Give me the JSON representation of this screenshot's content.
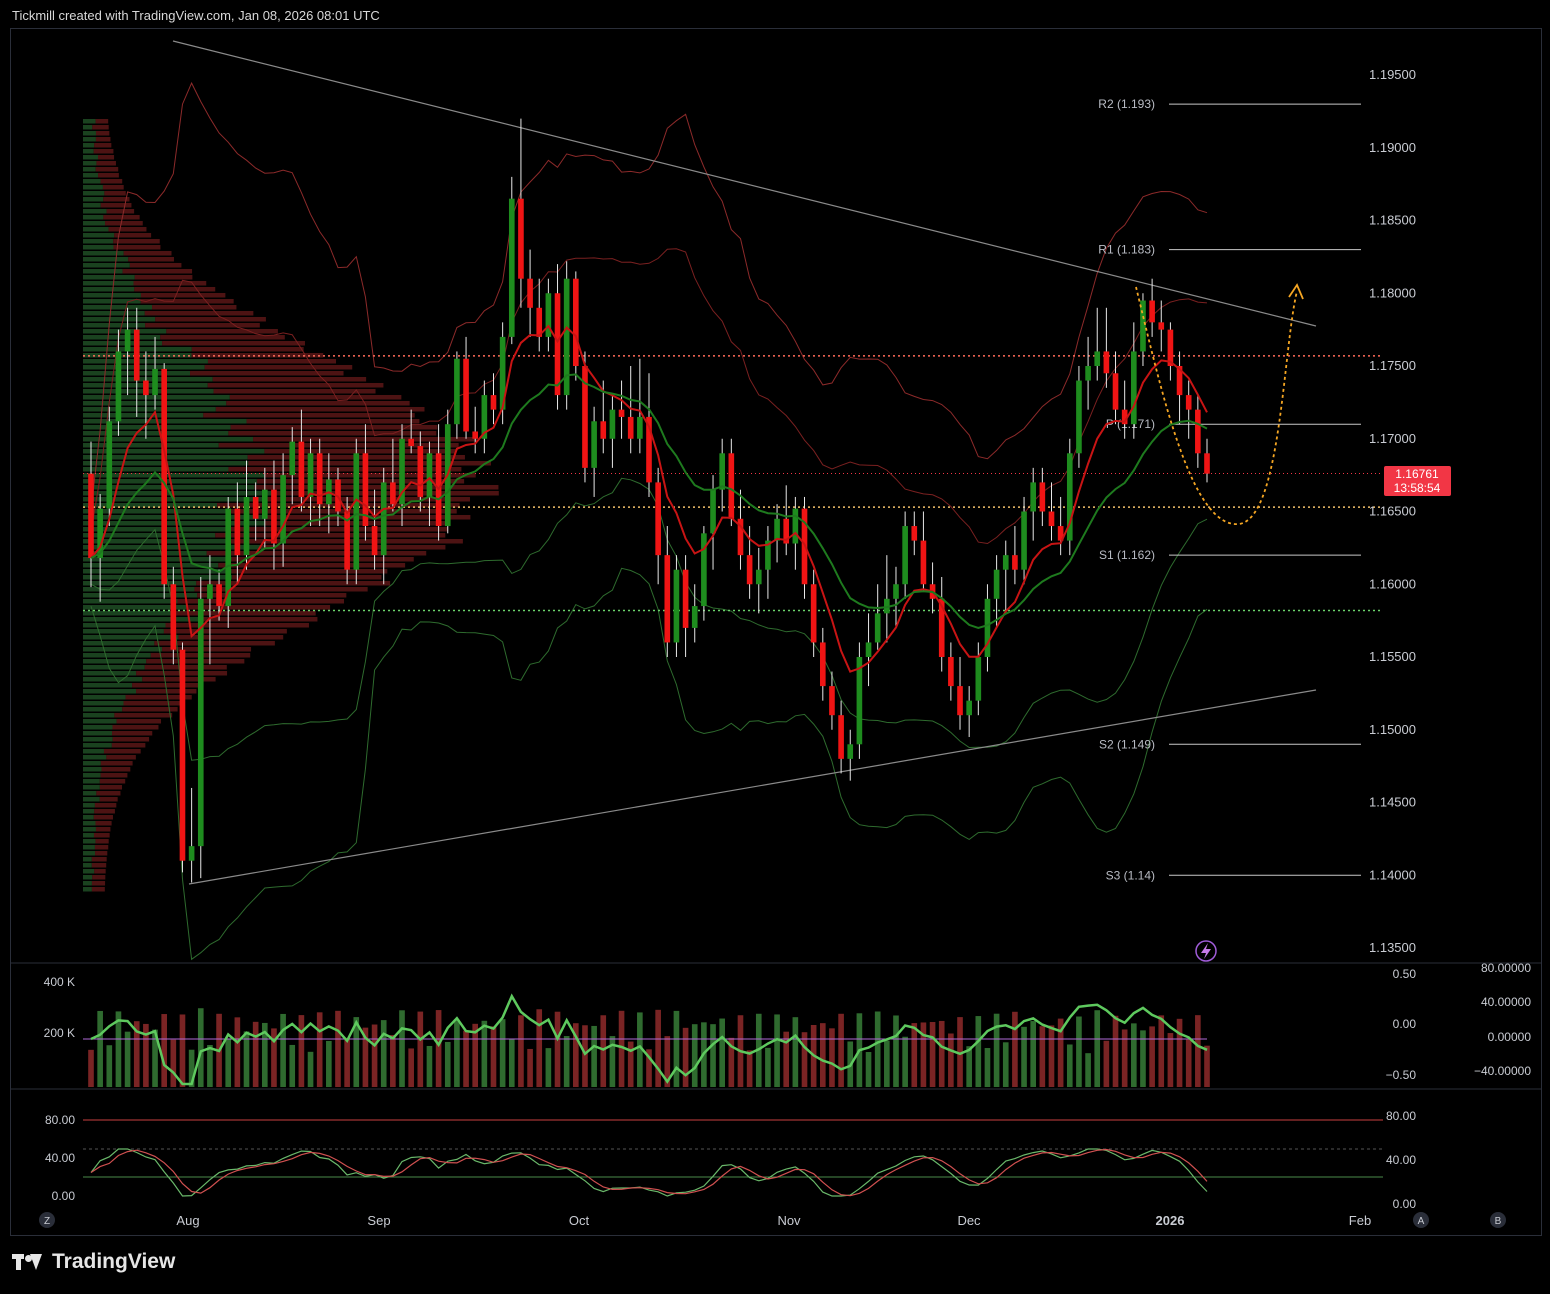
{
  "header": {
    "text": "Tickmill created with TradingView.com, Jan 08, 2026 08:01 UTC"
  },
  "footer": {
    "brand": "TradingView"
  },
  "price_axis": {
    "ticks": [
      "1.19500",
      "1.19000",
      "1.18500",
      "1.18000",
      "1.17500",
      "1.17000",
      "1.16500",
      "1.16000",
      "1.15500",
      "1.15000",
      "1.14500",
      "1.14000",
      "1.13500"
    ]
  },
  "last_price": {
    "value": "1.16761",
    "countdown": "13:58:54",
    "color": "#f23645"
  },
  "pivots": [
    {
      "label": "R2 (1.193)",
      "value": 1.193
    },
    {
      "label": "R1 (1.183)",
      "value": 1.183
    },
    {
      "label": "P (1.171)",
      "value": 1.171
    },
    {
      "label": "S1 (1.162)",
      "value": 1.162
    },
    {
      "label": "S2 (1.149)",
      "value": 1.149
    },
    {
      "label": "S3 (1.14)",
      "value": 1.14
    }
  ],
  "time_axis": {
    "labels": [
      "Aug",
      "Sep",
      "Oct",
      "Nov",
      "Dec",
      "2026",
      "Feb"
    ]
  },
  "volume_pane": {
    "left_ticks": [
      "400 K",
      "200 K"
    ],
    "mid_ticks": [
      "0.50",
      "0.00",
      "−0.50"
    ],
    "right_ticks": [
      "80.00000",
      "40.00000",
      "0.00000",
      "−40.00000"
    ]
  },
  "stoch_pane": {
    "left_ticks": [
      "80.00",
      "40.00",
      "0.00"
    ],
    "right_ticks": [
      "80.00",
      "40.00",
      "0.00"
    ]
  },
  "corner_buttons": {
    "z": "Z",
    "a": "A",
    "b": "B"
  },
  "colors": {
    "up": "#1e8c1e",
    "down": "#f01414",
    "trend": "#8a8a8a",
    "forecast": "#f5a623",
    "poc": "#ff6b5a",
    "val": "#f5c26b",
    "vah": "#6bd46b"
  },
  "chart_data": {
    "type": "candlestick",
    "symbol_price_range": [
      1.13,
      1.2
    ],
    "candles": [
      [
        1.1676,
        1.1698,
        1.1598,
        1.1618
      ],
      [
        1.1618,
        1.1662,
        1.1588,
        1.1652
      ],
      [
        1.1652,
        1.1722,
        1.164,
        1.1712
      ],
      [
        1.1712,
        1.1775,
        1.1702,
        1.176
      ],
      [
        1.176,
        1.179,
        1.173,
        1.1775
      ],
      [
        1.1775,
        1.179,
        1.1715,
        1.174
      ],
      [
        1.174,
        1.176,
        1.17,
        1.173
      ],
      [
        1.173,
        1.177,
        1.172,
        1.1748
      ],
      [
        1.1748,
        1.1752,
        1.159,
        1.16
      ],
      [
        1.16,
        1.1612,
        1.1545,
        1.1555
      ],
      [
        1.1555,
        1.156,
        1.1402,
        1.141
      ],
      [
        1.141,
        1.146,
        1.1395,
        1.142
      ],
      [
        1.142,
        1.1605,
        1.1398,
        1.159
      ],
      [
        1.159,
        1.162,
        1.1545,
        1.16
      ],
      [
        1.16,
        1.161,
        1.1575,
        1.1585
      ],
      [
        1.1585,
        1.166,
        1.157,
        1.1652
      ],
      [
        1.1652,
        1.167,
        1.16,
        1.162
      ],
      [
        1.162,
        1.1685,
        1.161,
        1.166
      ],
      [
        1.166,
        1.167,
        1.163,
        1.1645
      ],
      [
        1.1645,
        1.168,
        1.1625,
        1.1665
      ],
      [
        1.1665,
        1.1685,
        1.161,
        1.1628
      ],
      [
        1.1628,
        1.169,
        1.1612,
        1.1675
      ],
      [
        1.1675,
        1.1708,
        1.1655,
        1.1698
      ],
      [
        1.1698,
        1.172,
        1.165,
        1.166
      ],
      [
        1.166,
        1.17,
        1.164,
        1.169
      ],
      [
        1.169,
        1.17,
        1.164,
        1.1655
      ],
      [
        1.1655,
        1.169,
        1.1635,
        1.1672
      ],
      [
        1.1672,
        1.168,
        1.164,
        1.165
      ],
      [
        1.165,
        1.166,
        1.16,
        1.161
      ],
      [
        1.161,
        1.17,
        1.16,
        1.169
      ],
      [
        1.169,
        1.171,
        1.163,
        1.164
      ],
      [
        1.164,
        1.1665,
        1.161,
        1.162
      ],
      [
        1.162,
        1.168,
        1.16,
        1.167
      ],
      [
        1.167,
        1.17,
        1.165,
        1.1655
      ],
      [
        1.1655,
        1.171,
        1.164,
        1.17
      ],
      [
        1.17,
        1.172,
        1.169,
        1.1695
      ],
      [
        1.1695,
        1.1705,
        1.165,
        1.166
      ],
      [
        1.166,
        1.1698,
        1.164,
        1.169
      ],
      [
        1.169,
        1.171,
        1.163,
        1.164
      ],
      [
        1.164,
        1.172,
        1.1635,
        1.171
      ],
      [
        1.171,
        1.176,
        1.17,
        1.1755
      ],
      [
        1.1755,
        1.177,
        1.17,
        1.1705
      ],
      [
        1.1705,
        1.1722,
        1.169,
        1.17
      ],
      [
        1.17,
        1.174,
        1.169,
        1.173
      ],
      [
        1.173,
        1.1745,
        1.171,
        1.172
      ],
      [
        1.172,
        1.178,
        1.171,
        1.177
      ],
      [
        1.177,
        1.188,
        1.1765,
        1.1865
      ],
      [
        1.1865,
        1.192,
        1.179,
        1.181
      ],
      [
        1.181,
        1.183,
        1.177,
        1.179
      ],
      [
        1.179,
        1.181,
        1.176,
        1.177
      ],
      [
        1.177,
        1.181,
        1.176,
        1.18
      ],
      [
        1.18,
        1.182,
        1.172,
        1.173
      ],
      [
        1.173,
        1.1822,
        1.172,
        1.181
      ],
      [
        1.181,
        1.1815,
        1.174,
        1.175
      ],
      [
        1.175,
        1.176,
        1.167,
        1.168
      ],
      [
        1.168,
        1.1722,
        1.166,
        1.1712
      ],
      [
        1.1712,
        1.174,
        1.169,
        1.17
      ],
      [
        1.17,
        1.173,
        1.168,
        1.172
      ],
      [
        1.172,
        1.174,
        1.17,
        1.1715
      ],
      [
        1.1715,
        1.175,
        1.169,
        1.17
      ],
      [
        1.17,
        1.1755,
        1.169,
        1.1715
      ],
      [
        1.1715,
        1.1745,
        1.166,
        1.167
      ],
      [
        1.167,
        1.168,
        1.16,
        1.162
      ],
      [
        1.162,
        1.164,
        1.155,
        1.156
      ],
      [
        1.156,
        1.162,
        1.155,
        1.161
      ],
      [
        1.161,
        1.162,
        1.155,
        1.157
      ],
      [
        1.157,
        1.16,
        1.156,
        1.1585
      ],
      [
        1.1585,
        1.164,
        1.1575,
        1.1635
      ],
      [
        1.1635,
        1.1675,
        1.161,
        1.1665
      ],
      [
        1.1665,
        1.17,
        1.165,
        1.169
      ],
      [
        1.169,
        1.17,
        1.164,
        1.1645
      ],
      [
        1.1645,
        1.1665,
        1.161,
        1.162
      ],
      [
        1.162,
        1.164,
        1.159,
        1.16
      ],
      [
        1.16,
        1.1625,
        1.158,
        1.161
      ],
      [
        1.161,
        1.164,
        1.159,
        1.163
      ],
      [
        1.163,
        1.1655,
        1.1615,
        1.1645
      ],
      [
        1.1645,
        1.1668,
        1.162,
        1.1628
      ],
      [
        1.1628,
        1.166,
        1.161,
        1.1652
      ],
      [
        1.1652,
        1.166,
        1.159,
        1.16
      ],
      [
        1.16,
        1.161,
        1.155,
        1.156
      ],
      [
        1.156,
        1.157,
        1.152,
        1.153
      ],
      [
        1.153,
        1.154,
        1.15,
        1.151
      ],
      [
        1.151,
        1.152,
        1.147,
        1.148
      ],
      [
        1.148,
        1.15,
        1.1465,
        1.149
      ],
      [
        1.149,
        1.156,
        1.148,
        1.155
      ],
      [
        1.155,
        1.158,
        1.153,
        1.156
      ],
      [
        1.156,
        1.16,
        1.1555,
        1.158
      ],
      [
        1.158,
        1.162,
        1.156,
        1.159
      ],
      [
        1.159,
        1.1612,
        1.157,
        1.16
      ],
      [
        1.16,
        1.165,
        1.159,
        1.164
      ],
      [
        1.164,
        1.165,
        1.162,
        1.163
      ],
      [
        1.163,
        1.165,
        1.1595,
        1.16
      ],
      [
        1.16,
        1.1615,
        1.158,
        1.159
      ],
      [
        1.159,
        1.1605,
        1.154,
        1.155
      ],
      [
        1.155,
        1.156,
        1.152,
        1.153
      ],
      [
        1.153,
        1.155,
        1.15,
        1.151
      ],
      [
        1.151,
        1.153,
        1.1495,
        1.152
      ],
      [
        1.152,
        1.156,
        1.151,
        1.155
      ],
      [
        1.155,
        1.16,
        1.154,
        1.159
      ],
      [
        1.159,
        1.162,
        1.157,
        1.161
      ],
      [
        1.161,
        1.163,
        1.158,
        1.162
      ],
      [
        1.162,
        1.164,
        1.16,
        1.161
      ],
      [
        1.161,
        1.166,
        1.16,
        1.165
      ],
      [
        1.165,
        1.168,
        1.163,
        1.167
      ],
      [
        1.167,
        1.168,
        1.164,
        1.165
      ],
      [
        1.165,
        1.167,
        1.163,
        1.164
      ],
      [
        1.164,
        1.166,
        1.162,
        1.163
      ],
      [
        1.163,
        1.17,
        1.162,
        1.169
      ],
      [
        1.169,
        1.175,
        1.168,
        1.174
      ],
      [
        1.174,
        1.177,
        1.172,
        1.175
      ],
      [
        1.175,
        1.179,
        1.174,
        1.176
      ],
      [
        1.176,
        1.179,
        1.1735,
        1.1745
      ],
      [
        1.1745,
        1.176,
        1.171,
        1.172
      ],
      [
        1.172,
        1.174,
        1.17,
        1.171
      ],
      [
        1.171,
        1.178,
        1.17,
        1.176
      ],
      [
        1.176,
        1.18,
        1.175,
        1.1795
      ],
      [
        1.1795,
        1.181,
        1.177,
        1.178
      ],
      [
        1.178,
        1.1795,
        1.176,
        1.1775
      ],
      [
        1.1775,
        1.178,
        1.174,
        1.175
      ],
      [
        1.175,
        1.176,
        1.171,
        1.173
      ],
      [
        1.173,
        1.174,
        1.17,
        1.172
      ],
      [
        1.172,
        1.173,
        1.168,
        1.169
      ],
      [
        1.169,
        1.17,
        1.167,
        1.1676
      ]
    ],
    "annotations": [
      "descending trendline",
      "ascending trendline",
      "forecast U-turn (dotted orange)"
    ],
    "poc_level": 1.1757,
    "value_area_high": 1.1653,
    "value_area_low": 1.1582
  }
}
